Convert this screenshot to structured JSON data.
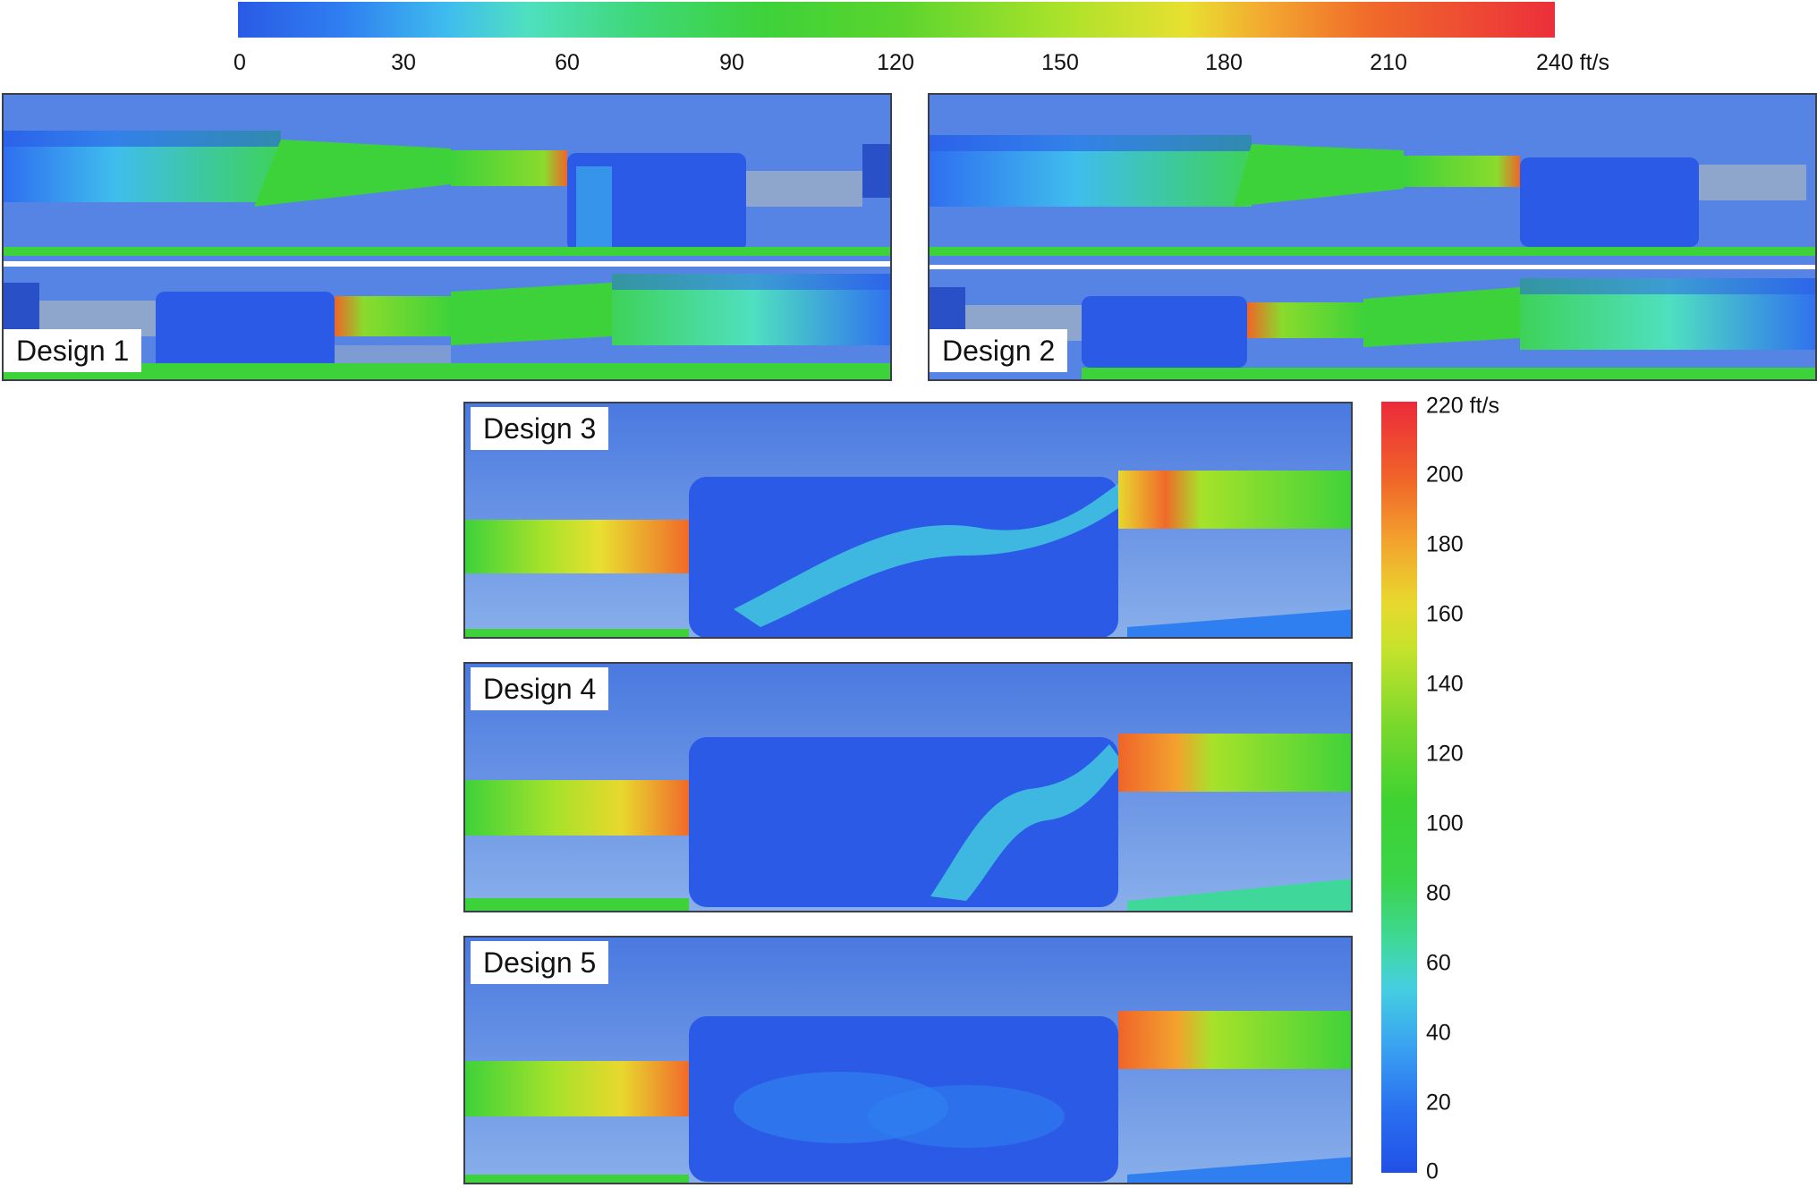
{
  "colorbar_top": {
    "ticks": [
      "0",
      "30",
      "60",
      "90",
      "120",
      "150",
      "180",
      "210",
      "240 ft/s"
    ]
  },
  "colorbar_right": {
    "ticks": [
      "220 ft/s",
      "200",
      "180",
      "160",
      "140",
      "120",
      "100",
      "80",
      "60",
      "40",
      "20",
      "0"
    ]
  },
  "designs": [
    {
      "label": "Design 1"
    },
    {
      "label": "Design 2"
    },
    {
      "label": "Design 3"
    },
    {
      "label": "Design 4"
    },
    {
      "label": "Design 5"
    }
  ],
  "colors": {
    "background_flow": "#4f7ee0",
    "low_velocity": "#2a5ae6",
    "mid_velocity": "#3fd83a",
    "high_velocity": "#ec2f3a"
  }
}
